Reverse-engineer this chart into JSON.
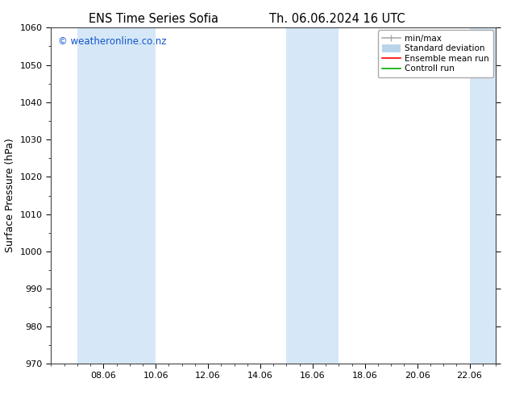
{
  "title_left": "ENS Time Series Sofia",
  "title_right": "Th. 06.06.2024 16 UTC",
  "ylabel": "Surface Pressure (hPa)",
  "ylim": [
    970,
    1060
  ],
  "yticks": [
    970,
    980,
    990,
    1000,
    1010,
    1020,
    1030,
    1040,
    1050,
    1060
  ],
  "xlim": [
    6.0,
    23.0
  ],
  "xtick_positions": [
    8,
    10,
    12,
    14,
    16,
    18,
    20,
    22
  ],
  "xtick_labels": [
    "08.06",
    "10.06",
    "12.06",
    "14.06",
    "16.06",
    "18.06",
    "20.06",
    "22.06"
  ],
  "shaded_bands": [
    {
      "xmin": 7.0,
      "xmax": 10.0
    },
    {
      "xmin": 15.0,
      "xmax": 17.0
    },
    {
      "xmin": 22.0,
      "xmax": 23.0
    }
  ],
  "band_color": "#d6e8f7",
  "background_color": "#ffffff",
  "watermark": "© weatheronline.co.nz",
  "watermark_color": "#1155cc",
  "legend_items": [
    {
      "label": "min/max",
      "color": "#aaaaaa",
      "lw": 1.2
    },
    {
      "label": "Standard deviation",
      "color": "#b8d4ea",
      "lw": 7
    },
    {
      "label": "Ensemble mean run",
      "color": "#ff0000",
      "lw": 1.2
    },
    {
      "label": "Controll run",
      "color": "#00aa00",
      "lw": 1.2
    }
  ],
  "title_fontsize": 10.5,
  "axis_label_fontsize": 9,
  "tick_fontsize": 8,
  "watermark_fontsize": 8.5,
  "legend_fontsize": 7.5
}
